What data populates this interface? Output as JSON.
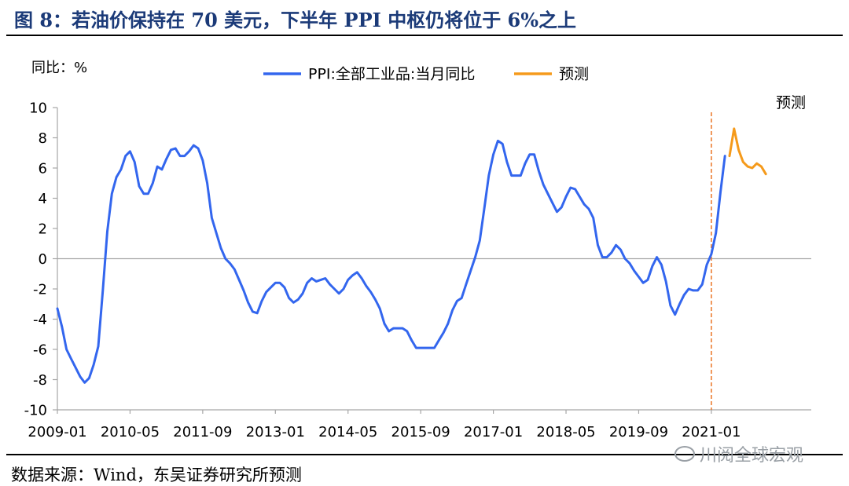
{
  "figure": {
    "title": "图 8：若油价保持在 70 美元，下半年 PPI 中枢仍将位于 6%之上",
    "source": "数据来源：Wind，东吴证券研究所预测",
    "watermark": "川阅全球宏观"
  },
  "chart_data": {
    "type": "line",
    "ylabel": "同比：%",
    "ylim": [
      -10,
      10
    ],
    "y_ticks": [
      "10",
      "8",
      "6",
      "4",
      "2",
      "0",
      "-2",
      "-4",
      "-6",
      "-8",
      "-10"
    ],
    "x_ticks": [
      "2009-01",
      "2010-05",
      "2011-09",
      "2013-01",
      "2014-05",
      "2015-09",
      "2017-01",
      "2018-05",
      "2019-09",
      "2021-01"
    ],
    "legend_position": "top",
    "forecast_marker": {
      "x": "2021-01",
      "label": "预测",
      "color": "#ed7d31"
    },
    "series": [
      {
        "name": "PPI:全部工业品:当月同比",
        "color": "#3366ee",
        "start": "2009-01",
        "values": [
          -3.3,
          -4.5,
          -6.0,
          -6.6,
          -7.2,
          -7.8,
          -8.2,
          -7.9,
          -7.0,
          -5.8,
          -2.1,
          1.8,
          4.3,
          5.4,
          5.9,
          6.8,
          7.1,
          6.4,
          4.8,
          4.3,
          4.3,
          5.0,
          6.1,
          5.9,
          6.6,
          7.2,
          7.3,
          6.8,
          6.8,
          7.1,
          7.5,
          7.3,
          6.5,
          5.0,
          2.7,
          1.7,
          0.7,
          0.0,
          -0.3,
          -0.7,
          -1.4,
          -2.1,
          -2.9,
          -3.5,
          -3.6,
          -2.8,
          -2.2,
          -1.9,
          -1.6,
          -1.6,
          -1.9,
          -2.6,
          -2.9,
          -2.7,
          -2.3,
          -1.6,
          -1.3,
          -1.5,
          -1.4,
          -1.3,
          -1.7,
          -2.0,
          -2.3,
          -2.0,
          -1.4,
          -1.1,
          -0.9,
          -1.3,
          -1.8,
          -2.2,
          -2.7,
          -3.3,
          -4.3,
          -4.8,
          -4.6,
          -4.6,
          -4.6,
          -4.8,
          -5.4,
          -5.9,
          -5.9,
          -5.9,
          -5.9,
          -5.9,
          -5.4,
          -4.9,
          -4.3,
          -3.4,
          -2.8,
          -2.6,
          -1.7,
          -0.8,
          0.1,
          1.2,
          3.3,
          5.5,
          6.9,
          7.8,
          7.6,
          6.4,
          5.5,
          5.5,
          5.5,
          6.3,
          6.9,
          6.9,
          5.8,
          4.9,
          4.3,
          3.7,
          3.1,
          3.4,
          4.1,
          4.7,
          4.6,
          4.1,
          3.6,
          3.3,
          2.7,
          0.9,
          0.1,
          0.1,
          0.4,
          0.9,
          0.6,
          0.0,
          -0.3,
          -0.8,
          -1.2,
          -1.6,
          -1.4,
          -0.5,
          0.1,
          -0.4,
          -1.5,
          -3.1,
          -3.7,
          -3.0,
          -2.4,
          -2.0,
          -2.1,
          -2.1,
          -1.7,
          -0.4,
          0.3,
          1.7,
          4.4,
          6.8
        ]
      },
      {
        "name": "预测",
        "color": "#f59a1b",
        "start": "2021-05",
        "values": [
          6.8,
          8.6,
          7.2,
          6.4,
          6.1,
          6.0,
          6.3,
          6.1,
          5.6
        ]
      }
    ]
  }
}
